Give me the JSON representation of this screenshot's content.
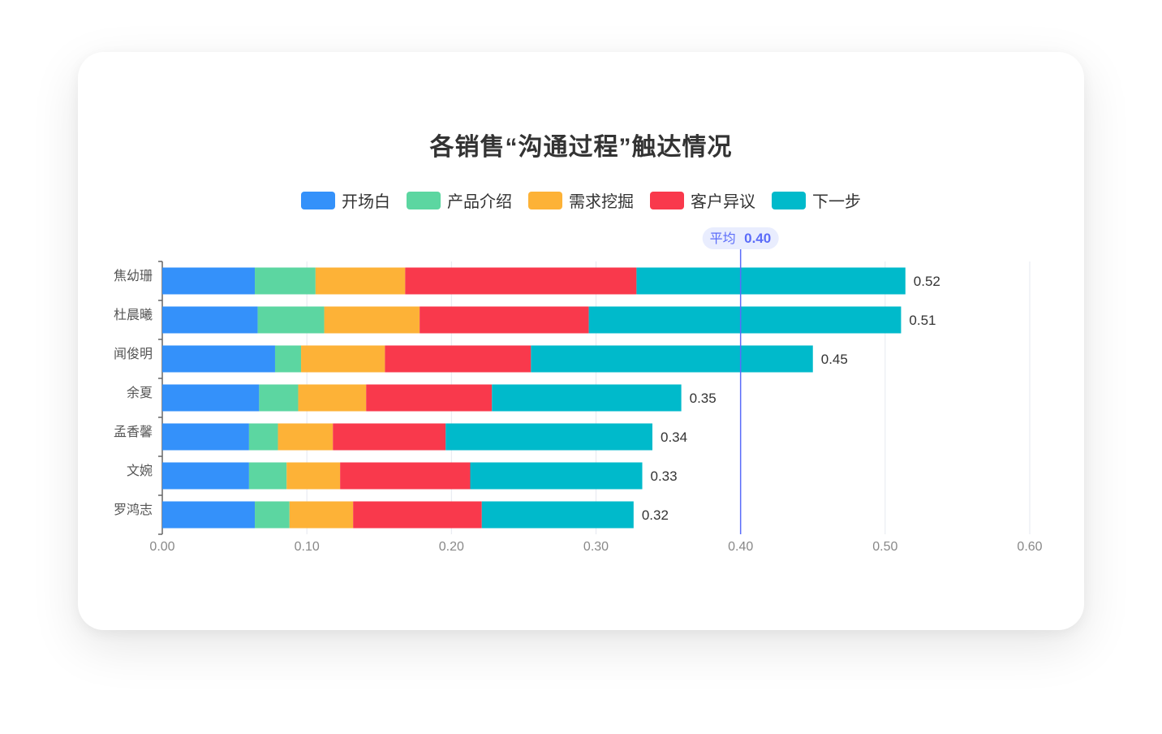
{
  "chart_data": {
    "type": "bar",
    "orientation": "horizontal",
    "stacked": true,
    "title": "各销售“沟通过程”触达情况",
    "categories": [
      "焦幼珊",
      "杜晨曦",
      "闻俊明",
      "余夏",
      "孟香馨",
      "文婉",
      "罗鸿志"
    ],
    "series": [
      {
        "name": "开场白",
        "color": "#3491FA",
        "values": [
          0.064,
          0.066,
          0.078,
          0.067,
          0.06,
          0.06,
          0.064
        ]
      },
      {
        "name": "产品介绍",
        "color": "#5CD6A1",
        "values": [
          0.042,
          0.046,
          0.018,
          0.027,
          0.02,
          0.026,
          0.024
        ]
      },
      {
        "name": "需求挖掘",
        "color": "#FDB237",
        "values": [
          0.062,
          0.066,
          0.058,
          0.047,
          0.038,
          0.037,
          0.044
        ]
      },
      {
        "name": "客户异议",
        "color": "#F9394C",
        "values": [
          0.16,
          0.117,
          0.101,
          0.087,
          0.078,
          0.09,
          0.089
        ]
      },
      {
        "name": "下一步",
        "color": "#00BACB",
        "values": [
          0.186,
          0.216,
          0.195,
          0.131,
          0.143,
          0.119,
          0.105
        ]
      }
    ],
    "totals_labels": [
      "0.52",
      "0.51",
      "0.45",
      "0.35",
      "0.34",
      "0.33",
      "0.32"
    ],
    "xlim": [
      0,
      0.6
    ],
    "xticks": [
      "0.00",
      "0.10",
      "0.20",
      "0.30",
      "0.40",
      "0.50",
      "0.60"
    ],
    "grid": true,
    "legend_position": "top-center",
    "average_line": {
      "value": 0.4,
      "label": "平均",
      "value_label": "0.40",
      "color": "#5B6CF9"
    }
  }
}
